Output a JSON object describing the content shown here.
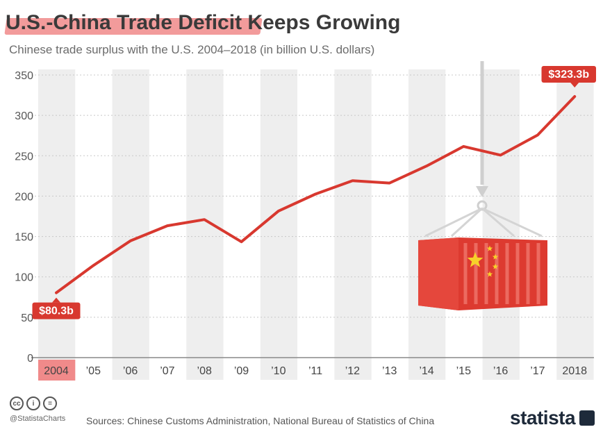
{
  "header": {
    "title": "U.S.-China Trade Deficit Keeps Growing",
    "subtitle": "Chinese trade surplus with the U.S. 2004–2018 (in billion U.S. dollars)"
  },
  "chart_data": {
    "type": "line",
    "title": "U.S.-China Trade Deficit Keeps Growing",
    "subtitle": "Chinese trade surplus with the U.S. 2004–2018 (in billion U.S. dollars)",
    "categories": [
      "2004",
      "’05",
      "’06",
      "’07",
      "’08",
      "’09",
      "’10",
      "’11",
      "’12",
      "’13",
      "’14",
      "’15",
      "’16",
      "’17",
      "2018"
    ],
    "years": [
      2004,
      2005,
      2006,
      2007,
      2008,
      2009,
      2010,
      2011,
      2012,
      2013,
      2014,
      2015,
      2016,
      2017,
      2018
    ],
    "values": [
      80.3,
      114,
      144.6,
      163.3,
      171,
      143.4,
      181.5,
      202.5,
      219.1,
      216.2,
      237.3,
      261.5,
      250.8,
      275.6,
      323.3
    ],
    "y_ticks": [
      "0",
      "50",
      "100",
      "150",
      "200",
      "250",
      "300",
      "350"
    ],
    "ylim": [
      0,
      350
    ],
    "start_label": "$80.3b",
    "end_label": "$323.3b",
    "highlight_category": "2004",
    "line_color": "#d8382f",
    "band_color": "#eeeeee",
    "grid": "dotted",
    "legend": "none",
    "illustration": "shipping-container-icon with China flag hanging from crane hook"
  },
  "footer": {
    "handle": "@StatistaCharts",
    "sources": "Sources: Chinese Customs Administration, National Bureau of Statistics of China",
    "logo": "statista",
    "license_icons": [
      "cc",
      "by",
      "nd"
    ]
  }
}
